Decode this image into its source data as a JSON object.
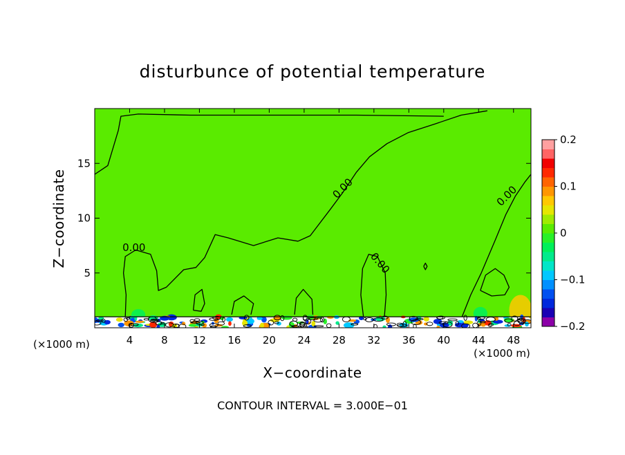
{
  "chart_data": {
    "type": "heatmap",
    "title": "disturbunce of potential temperature",
    "xlabel": "X−coordinate",
    "ylabel": "Z−coordinate",
    "x_unit_left": "(×1000 m)",
    "x_unit_right": "(×1000 m)",
    "xlim": [
      0,
      50
    ],
    "ylim": [
      0,
      20
    ],
    "x_ticks": [
      4,
      8,
      12,
      16,
      20,
      24,
      28,
      32,
      36,
      40,
      44,
      48
    ],
    "y_ticks": [
      5,
      10,
      15
    ],
    "colorbar": {
      "range": [
        -0.2,
        0.2
      ],
      "tick_values": [
        0.2,
        0.1,
        0,
        -0.1,
        -0.2
      ],
      "tick_labels": [
        "0.2",
        "0.1",
        "0",
        "−0.1",
        "−0.2"
      ],
      "colors": [
        "#8c00a8",
        "#1a00b4",
        "#0028dc",
        "#0050f0",
        "#0090ff",
        "#00c8ff",
        "#00e6c8",
        "#00eb8c",
        "#00f05a",
        "#28f028",
        "#5aeb00",
        "#a0eb00",
        "#e6e600",
        "#ffc800",
        "#ff9600",
        "#ff6400",
        "#ff2800",
        "#f00000",
        "#ff6464",
        "#ffa0a0"
      ]
    },
    "background_value": 0.0,
    "contour_labels": [
      {
        "text": "0.00",
        "x": 4.5,
        "y": 7.0,
        "angle": 0
      },
      {
        "text": "0.00",
        "x": 28.7,
        "y": 12.5,
        "angle": -45
      },
      {
        "text": "0.00",
        "x": 32.4,
        "y": 5.7,
        "angle": 50
      },
      {
        "text": "0.00",
        "x": 47.5,
        "y": 11.8,
        "angle": -45
      }
    ],
    "contours": [
      {
        "level": 0.0,
        "points": [
          [
            0,
            14
          ],
          [
            1.5,
            14.8
          ],
          [
            2.7,
            18
          ],
          [
            3,
            19.3
          ],
          [
            5,
            19.5
          ],
          [
            11,
            19.4
          ],
          [
            20,
            19.4
          ],
          [
            30,
            19.4
          ],
          [
            40,
            19.3
          ]
        ]
      },
      {
        "level": 0.0,
        "points": [
          [
            3.5,
            1
          ],
          [
            3.6,
            3
          ],
          [
            3.3,
            5
          ],
          [
            3.5,
            6.5
          ],
          [
            4.7,
            7.1
          ],
          [
            6.4,
            6.7
          ],
          [
            7.1,
            5.2
          ],
          [
            7.3,
            3.4
          ],
          [
            8.2,
            3.7
          ],
          [
            10.2,
            5.3
          ],
          [
            11.6,
            5.5
          ],
          [
            12.6,
            6.4
          ],
          [
            13.8,
            8.5
          ],
          [
            15.3,
            8.2
          ],
          [
            18.2,
            7.5
          ],
          [
            21,
            8.2
          ],
          [
            23.3,
            7.9
          ],
          [
            24.7,
            8.4
          ],
          [
            27,
            10.8
          ],
          [
            28.4,
            12.3
          ],
          [
            30,
            14.2
          ],
          [
            31.5,
            15.6
          ],
          [
            33.5,
            16.8
          ],
          [
            35.9,
            17.8
          ],
          [
            39,
            18.6
          ],
          [
            42,
            19.4
          ],
          [
            45,
            19.8
          ]
        ]
      },
      {
        "level": 0.0,
        "points": [
          [
            30.8,
            1
          ],
          [
            30.5,
            3
          ],
          [
            30.7,
            5.4
          ],
          [
            31.4,
            6.7
          ],
          [
            32.4,
            6.5
          ],
          [
            33.3,
            5
          ],
          [
            33.4,
            3
          ],
          [
            33.2,
            1
          ]
        ]
      },
      {
        "level": 0.0,
        "points": [
          [
            42.1,
            1
          ],
          [
            43.1,
            3
          ],
          [
            44.3,
            5
          ],
          [
            45.9,
            8
          ],
          [
            47.1,
            10.3
          ],
          [
            48.2,
            12
          ],
          [
            49.3,
            13.3
          ],
          [
            50,
            14
          ]
        ]
      },
      {
        "level": 0.0,
        "points": [
          [
            11.3,
            1.6
          ],
          [
            11.5,
            3
          ],
          [
            12.3,
            3.5
          ],
          [
            12.6,
            2.2
          ],
          [
            12.2,
            1.5
          ],
          [
            11.3,
            1.6
          ]
        ]
      },
      {
        "level": 0.0,
        "points": [
          [
            15.7,
            1.2
          ],
          [
            16,
            2.4
          ],
          [
            17.1,
            2.9
          ],
          [
            18.2,
            2.2
          ],
          [
            17.9,
            1.2
          ]
        ]
      },
      {
        "level": 0.0,
        "points": [
          [
            22.9,
            1.2
          ],
          [
            23.1,
            2.7
          ],
          [
            23.9,
            3.5
          ],
          [
            24.9,
            2.6
          ],
          [
            25,
            1.2
          ]
        ]
      },
      {
        "level": 0.0,
        "points": [
          [
            44.2,
            3.4
          ],
          [
            44.8,
            4.8
          ],
          [
            45.9,
            5.4
          ],
          [
            46.9,
            4.8
          ],
          [
            47.5,
            3.7
          ],
          [
            47,
            3
          ],
          [
            45.5,
            2.9
          ],
          [
            44.2,
            3.4
          ]
        ]
      },
      {
        "level": 0.0,
        "points": [
          [
            37.7,
            5.6
          ],
          [
            37.9,
            5.9
          ],
          [
            38.1,
            5.6
          ],
          [
            37.9,
            5.3
          ],
          [
            37.7,
            5.6
          ]
        ]
      }
    ],
    "color_patches": [
      {
        "x": 1.3,
        "y": 1.5,
        "rx": 0.7,
        "ry": 1.2,
        "value": 0.02
      },
      {
        "x": 5.0,
        "y": 1.2,
        "rx": 0.8,
        "ry": 0.5,
        "value": -0.03
      },
      {
        "x": 44.2,
        "y": 1.3,
        "rx": 0.8,
        "ry": 0.6,
        "value": -0.03
      },
      {
        "x": 48.8,
        "y": 1.6,
        "rx": 1.3,
        "ry": 1.4,
        "value": 0.06
      }
    ],
    "surface_band": {
      "z_top": 1.0,
      "x_range": [
        0,
        50
      ]
    }
  },
  "footer": {
    "text": "CONTOUR INTERVAL = 3.000E−01"
  }
}
